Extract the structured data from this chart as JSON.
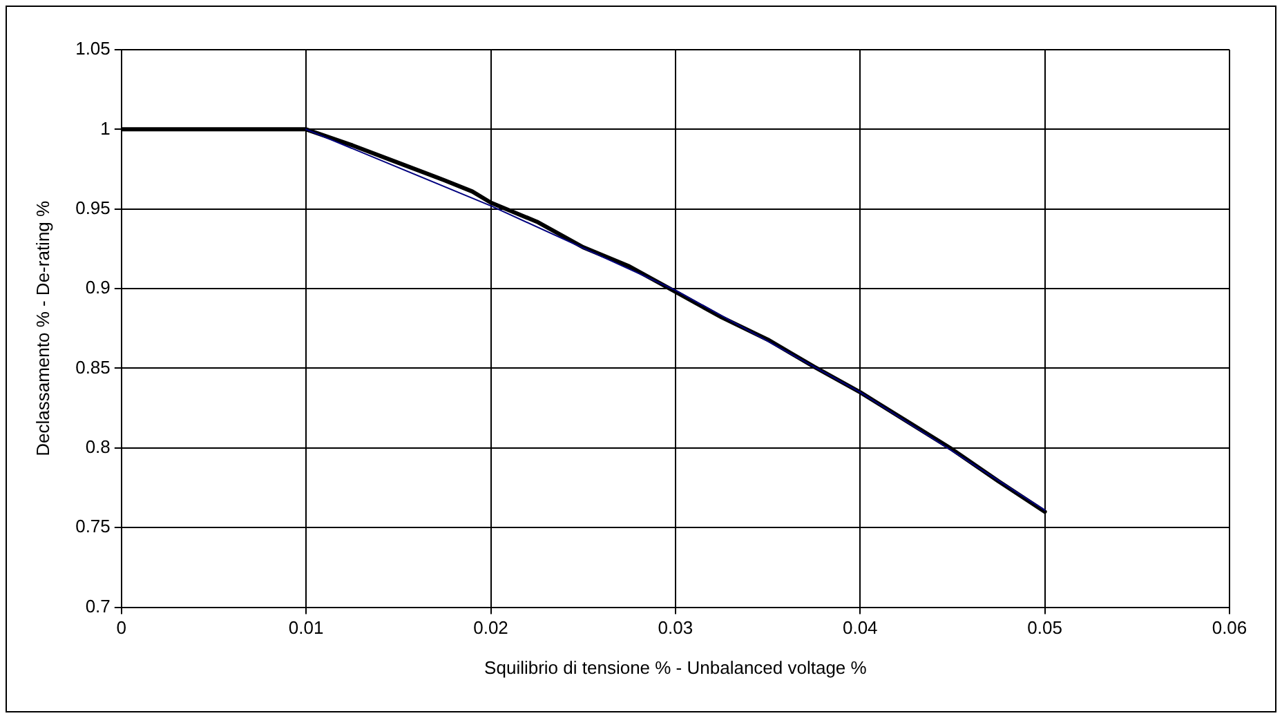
{
  "chart_data": {
    "type": "line",
    "xlabel": "Squilibrio di tensione % - Unbalanced voltage %",
    "ylabel": "Declassamento % - De-rating %",
    "series": [
      {
        "color": "#000000",
        "x": [
          0,
          0.005,
          0.01,
          0.0125,
          0.015,
          0.0175,
          0.019,
          0.02,
          0.0225,
          0.025,
          0.0275,
          0.03,
          0.0325,
          0.035,
          0.0375,
          0.04,
          0.0425,
          0.045,
          0.0475,
          0.05
        ],
        "values": [
          1,
          1,
          1,
          0.99,
          0.979,
          0.968,
          0.961,
          0.954,
          0.942,
          0.926,
          0.914,
          0.898,
          0.882,
          0.868,
          0.851,
          0.835,
          0.817,
          0.799,
          0.779,
          0.76
        ]
      },
      {
        "color": "#00007f",
        "x": [
          0.01,
          0.02,
          0.03,
          0.04,
          0.05
        ],
        "values": [
          1,
          0.952,
          0.899,
          0.835,
          0.761
        ]
      }
    ],
    "xlim": [
      0,
      0.06
    ],
    "xticks": [
      0,
      0.01,
      0.02,
      0.03,
      0.04,
      0.05,
      0.06
    ],
    "ylim": [
      0.7,
      1.05
    ],
    "yticks": [
      0.7,
      0.75,
      0.8,
      0.85,
      0.9,
      0.95,
      1,
      1.05
    ],
    "grid": true,
    "legend": false,
    "marker": "none",
    "line_style": "solid"
  }
}
